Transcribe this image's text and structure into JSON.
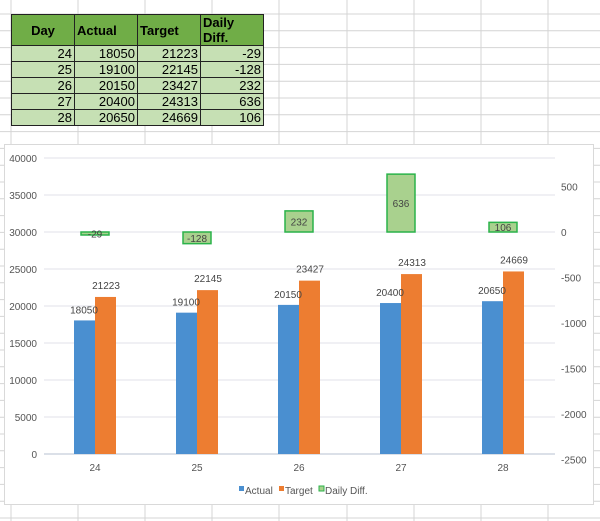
{
  "table": {
    "headers": [
      "Day",
      "Actual",
      "Target",
      "Daily Diff."
    ],
    "rows": [
      [
        "24",
        "18050",
        "21223",
        "-29"
      ],
      [
        "25",
        "19100",
        "22145",
        "-128"
      ],
      [
        "26",
        "20150",
        "23427",
        "232"
      ],
      [
        "27",
        "20400",
        "24313",
        "636"
      ],
      [
        "28",
        "20650",
        "24669",
        "106"
      ]
    ]
  },
  "chart_data": {
    "type": "bar",
    "categories": [
      "24",
      "25",
      "26",
      "27",
      "28"
    ],
    "series": [
      {
        "name": "Actual",
        "axis": "primary",
        "values": [
          18050,
          19100,
          20150,
          20400,
          20650
        ],
        "color": "#4a8fd0"
      },
      {
        "name": "Target",
        "axis": "primary",
        "values": [
          21223,
          22145,
          23427,
          24313,
          24669
        ],
        "color": "#ed7d31"
      },
      {
        "name": "Daily Diff.",
        "axis": "secondary",
        "values": [
          -29,
          -128,
          232,
          636,
          106
        ],
        "color": "#a9d18e"
      }
    ],
    "primary_axis": {
      "ticks": [
        0,
        5000,
        10000,
        15000,
        20000,
        25000,
        30000,
        35000,
        40000
      ],
      "range": [
        0,
        40000
      ]
    },
    "secondary_axis": {
      "ticks": [
        -2500,
        -2000,
        -1500,
        -1000,
        -500,
        0,
        500
      ],
      "range": [
        -2500,
        811
      ]
    },
    "grid": true,
    "legend": "bottom",
    "data_labels": true
  }
}
